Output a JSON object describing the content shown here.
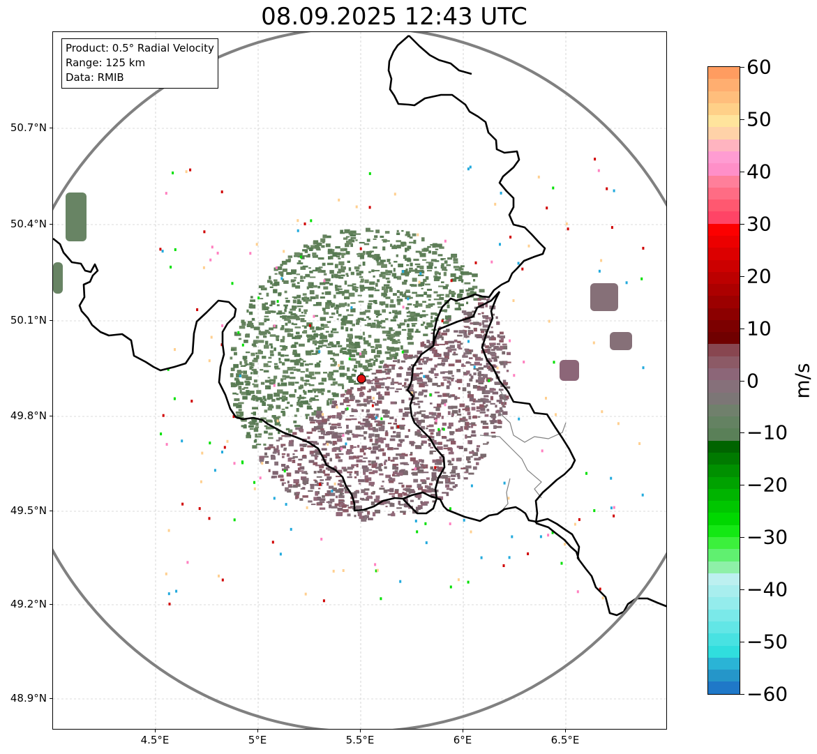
{
  "title": "08.09.2025 12:43 UTC",
  "info_box": {
    "product": "Product: 0.5° Radial Velocity",
    "range": "Range: 125 km",
    "data": "Data: RMIB"
  },
  "map": {
    "lon_ticks": [
      "4.5°E",
      "5°E",
      "5.5°E",
      "6°E",
      "6.5°E"
    ],
    "lat_ticks": [
      "50.7°N",
      "50.4°N",
      "50.1°N",
      "49.8°N",
      "49.5°N",
      "49.2°N",
      "48.9°N"
    ],
    "radar_site": {
      "lon": 5.505,
      "lat": 49.914
    },
    "range_ring_color": "#808080",
    "border_color": "#000000"
  },
  "colorbar": {
    "label": "m/s",
    "ticks": [
      "60",
      "50",
      "40",
      "30",
      "20",
      "10",
      "0",
      "−10",
      "−20",
      "−30",
      "−40",
      "−50",
      "−60"
    ],
    "min": -60,
    "max": 60,
    "colors_bottom_to_top": [
      "#1f78c8",
      "#2596c9",
      "#2ab4d6",
      "#30dede",
      "#48e2e2",
      "#62e6e6",
      "#7ae9e9",
      "#94ecec",
      "#a8eeee",
      "#bcf0f0",
      "#8ef0a8",
      "#60f070",
      "#3cf03c",
      "#14e814",
      "#00d800",
      "#00c600",
      "#00b400",
      "#00a200",
      "#009000",
      "#007a00",
      "#006400",
      "#5a8058",
      "#648262",
      "#70806c",
      "#7c7676",
      "#86707a",
      "#8c6678",
      "#8c5a66",
      "#884650",
      "#700000",
      "#7c0000",
      "#8c0000",
      "#9c0000",
      "#ac0000",
      "#bc0000",
      "#cc0000",
      "#dc0000",
      "#ec0000",
      "#fc0000",
      "#ff4466",
      "#ff5870",
      "#ff6c84",
      "#ff7f9a",
      "#ff8fc8",
      "#ff9cd2",
      "#ffb4c0",
      "#ffd2a8",
      "#ffe49c",
      "#ffd088",
      "#ffbe7c",
      "#ffae70",
      "#ff9c60"
    ]
  }
}
